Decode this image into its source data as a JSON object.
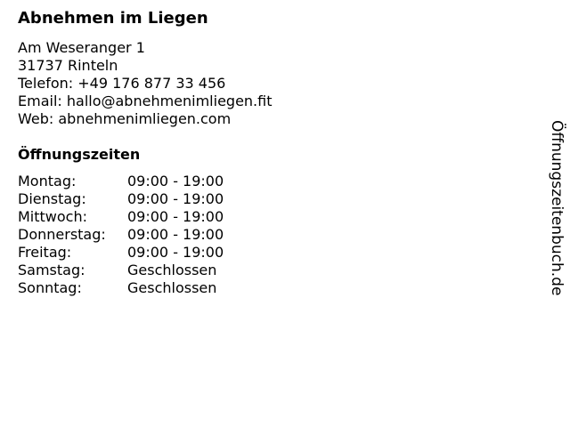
{
  "business": {
    "name": "Abnehmen im Liegen",
    "street": "Am Weseranger 1",
    "city": "31737 Rinteln",
    "phone": "Telefon: +49 176 877 33 456",
    "email": "Email: hallo@abnehmenimliegen.fit",
    "web": "Web: abnehmenimliegen.com"
  },
  "hours": {
    "heading": "Öffnungszeiten",
    "rows": [
      {
        "day": "Montag:",
        "time": "09:00 - 19:00"
      },
      {
        "day": "Dienstag:",
        "time": "09:00 - 19:00"
      },
      {
        "day": "Mittwoch:",
        "time": "09:00 - 19:00"
      },
      {
        "day": "Donnerstag:",
        "time": "09:00 - 19:00"
      },
      {
        "day": "Freitag:",
        "time": "09:00 - 19:00"
      },
      {
        "day": "Samstag:",
        "time": "Geschlossen"
      },
      {
        "day": "Sonntag:",
        "time": "Geschlossen"
      }
    ]
  },
  "watermark": "Öffnungszeitenbuch.de"
}
